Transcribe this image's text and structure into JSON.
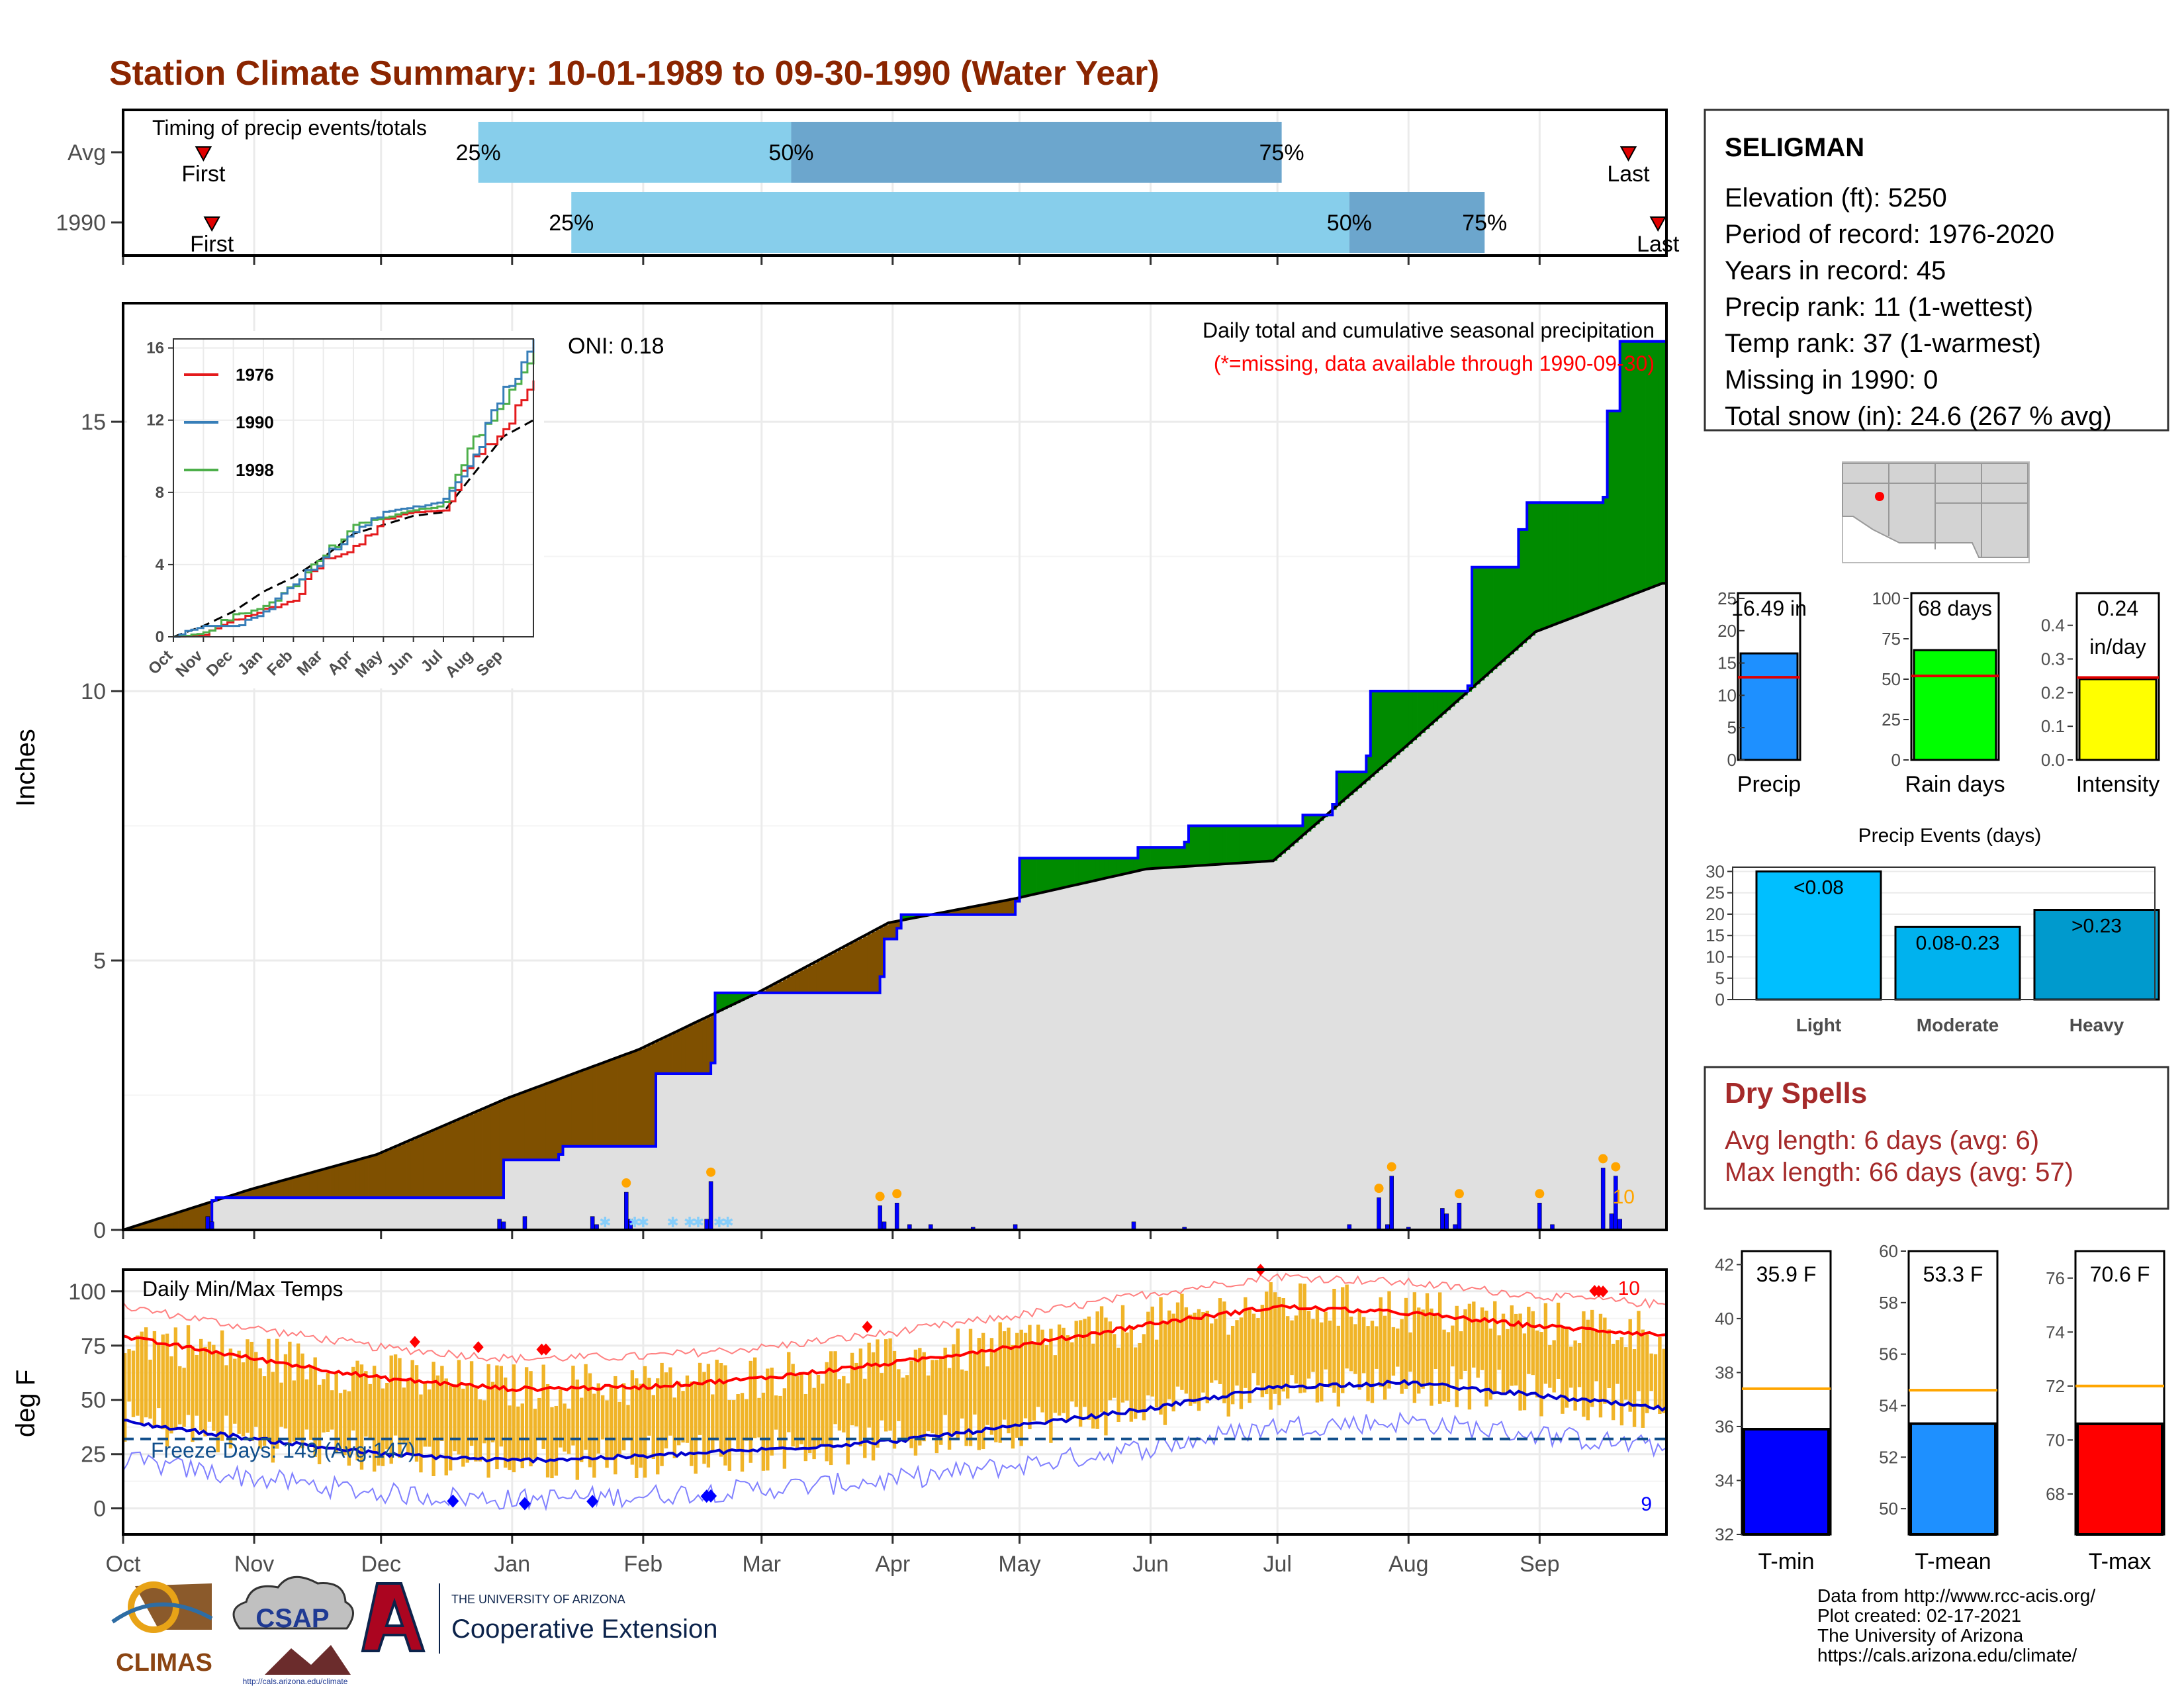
{
  "title": "Station Climate Summary: 10-01-1989 to 09-30-1990 (Water Year)",
  "colors": {
    "title": "#8B2500",
    "light_blue": "#87CEEB",
    "mid_blue": "#6CA6CD",
    "brown": "#7F5000",
    "green": "#008B00",
    "gray_fill": "#E0E0E0",
    "bar_blue": "#0000FF",
    "orange": "#F0B428",
    "red": "#FF0000",
    "dark_red": "#A52A2A",
    "precip_blue": "#1E90FF",
    "rain_green": "#00FF00",
    "intensity_yellow": "#FFFF00",
    "light_cyan": "#00BFFF",
    "mod_cyan": "#009ACD"
  },
  "timing": {
    "label": "Timing of precip events/totals",
    "rows": [
      {
        "name": "Avg",
        "first_label": "First",
        "last_label": "Last",
        "first_date": "1989-10-20",
        "last_date": "1990-09-22",
        "q25": "1989-12-24",
        "q50": "1990-03-08",
        "q75": "1990-07-02",
        "q25_label": "25%",
        "q50_label": "50%",
        "q75_label": "75%"
      },
      {
        "name": "1990",
        "first_label": "First",
        "last_label": "Last",
        "first_date": "1989-10-22",
        "last_date": "1990-09-29",
        "q25": "1990-01-15",
        "q50": "1990-07-18",
        "q75": "1990-08-19",
        "q25_label": "25%",
        "q50_label": "50%",
        "q75_label": "75%"
      }
    ]
  },
  "precip_panel": {
    "ylabel": "Inches",
    "oni_label": "ONI: 0.18",
    "caption": "Daily total and cumulative seasonal precipitation",
    "missing_note": "(*=missing, data available through 1990-09-30)",
    "ymax_label": "10",
    "y_ticks": [
      "0",
      "5",
      "10",
      "15"
    ]
  },
  "inset": {
    "legend": [
      {
        "name": "1976",
        "color": "#E41A1C"
      },
      {
        "name": "1990",
        "color": "#377EB8"
      },
      {
        "name": "1998",
        "color": "#4DAF4A"
      }
    ],
    "y_ticks": [
      "0",
      "4",
      "8",
      "12",
      "16"
    ],
    "x_ticks": [
      "Oct",
      "Nov",
      "Dec",
      "Jan",
      "Feb",
      "Mar",
      "Apr",
      "May",
      "Jun",
      "Jul",
      "Aug",
      "Sep"
    ]
  },
  "temp_panel": {
    "ylabel": "deg F",
    "label": "Daily Min/Max Temps",
    "freeze_label": "Freeze Days: 149 (Avg:147)",
    "record_high_count": "10",
    "record_low_count": "9",
    "y_ticks": [
      "0",
      "25",
      "50",
      "75",
      "100"
    ]
  },
  "month_labels": [
    "Oct",
    "Nov",
    "Dec",
    "Jan",
    "Feb",
    "Mar",
    "Apr",
    "May",
    "Jun",
    "Jul",
    "Aug",
    "Sep"
  ],
  "station": {
    "name": "SELIGMAN",
    "lines": [
      "Elevation (ft): 5250",
      "Period of record: 1976-2020",
      "Years in record: 45",
      "Precip rank: 11 (1-wettest)",
      "Temp rank: 37 (1-warmest)",
      "Missing in 1990: 0",
      "Total snow (in): 24.6 (267 % avg)"
    ]
  },
  "summary_bars": [
    {
      "name": "Precip",
      "value": 16.49,
      "avg": 12.8,
      "label": "16.49 in",
      "ymax": 25,
      "ticks": [
        "0",
        "5",
        "10",
        "15",
        "20",
        "25"
      ],
      "color": "#1E90FF"
    },
    {
      "name": "Rain days",
      "value": 68,
      "avg": 52,
      "label": "68 days",
      "ymax": 100,
      "ticks": [
        "0",
        "25",
        "50",
        "75",
        "100"
      ],
      "color": "#00FF00"
    },
    {
      "name": "Intensity",
      "value": 0.24,
      "avg": 0.245,
      "label": "0.24",
      "label2": "in/day",
      "ymax": 0.48,
      "ticks": [
        "0.0",
        "0.1",
        "0.2",
        "0.3",
        "0.4"
      ],
      "color": "#FFFF00"
    }
  ],
  "precip_events": {
    "title": "Precip Events (days)",
    "ticks": [
      "0",
      "5",
      "10",
      "15",
      "20",
      "25",
      "30"
    ],
    "bars": [
      {
        "name": "Light",
        "label": "<0.08",
        "value": 30,
        "color": "#00BFFF"
      },
      {
        "name": "Moderate",
        "label": "0.08-0.23",
        "value": 17,
        "color": "#00B2EE"
      },
      {
        "name": "Heavy",
        "label": ">0.23",
        "value": 21,
        "color": "#009ACD"
      }
    ]
  },
  "dry_spells": {
    "title": "Dry Spells",
    "avg_line": "Avg length: 6 days (avg: 6)",
    "max_line": "Max length: 66 days (avg: 57)"
  },
  "temp_bars": [
    {
      "name": "T-min",
      "label": "35.9 F",
      "value": 35.9,
      "avg": 37.4,
      "ymin": 32,
      "ymax": 42.5,
      "ticks": [
        "32",
        "34",
        "36",
        "38",
        "40",
        "42"
      ],
      "color": "#0000FF"
    },
    {
      "name": "T-mean",
      "label": "53.3 F",
      "value": 53.3,
      "avg": 54.6,
      "ymin": 49,
      "ymax": 60,
      "ticks": [
        "50",
        "52",
        "54",
        "56",
        "58",
        "60"
      ],
      "color": "#1E90FF"
    },
    {
      "name": "T-max",
      "label": "70.6 F",
      "value": 70.6,
      "avg": 72.0,
      "ymin": 66.5,
      "ymax": 77,
      "ticks": [
        "68",
        "70",
        "72",
        "74",
        "76"
      ],
      "color": "#FF0000"
    }
  ],
  "credits": [
    "Data from http://www.rcc-acis.org/",
    "Plot created: 02-17-2021",
    "The University of Arizona",
    "https://cals.arizona.edu/climate/"
  ],
  "logos": {
    "climas": "CLIMAS",
    "csap": "CSAP",
    "csap_url": "http://cals.arizona.edu/climate",
    "ua_small": "THE UNIVERSITY OF ARIZONA",
    "ua_large": "Cooperative Extension"
  },
  "chart_data": {
    "type": "area",
    "x_axis": "date",
    "cumulative_precip_1990": {
      "x": [
        "1989-10-01",
        "1989-10-22",
        "1989-10-23",
        "1989-12-29",
        "1989-12-30",
        "1990-01-12",
        "1990-01-13",
        "1990-02-03",
        "1990-02-04",
        "1990-02-17",
        "1990-02-18",
        "1990-03-29",
        "1990-03-30",
        "1990-04-02",
        "1990-04-03",
        "1990-04-30",
        "1990-05-01",
        "1990-05-28",
        "1990-05-29",
        "1990-06-09",
        "1990-06-10",
        "1990-07-02",
        "1990-07-07",
        "1990-07-14",
        "1990-07-15",
        "1990-07-22",
        "1990-07-23",
        "1990-08-15",
        "1990-08-16",
        "1990-08-27",
        "1990-08-29",
        "1990-09-16",
        "1990-09-17",
        "1990-09-20",
        "1990-09-30"
      ],
      "y": [
        0,
        0.55,
        0.6,
        0.6,
        1.3,
        1.4,
        1.55,
        1.55,
        2.9,
        3.1,
        4.4,
        4.7,
        5.4,
        5.6,
        5.85,
        6.1,
        6.9,
        6.9,
        7.1,
        7.2,
        7.5,
        7.5,
        7.7,
        7.9,
        8.5,
        8.8,
        10.0,
        10.1,
        12.3,
        13.0,
        13.5,
        13.6,
        15.2,
        16.49,
        16.49
      ]
    },
    "cumulative_precip_avg": {
      "x": [
        "1989-10-01",
        "1989-10-31",
        "1989-11-30",
        "1989-12-31",
        "1990-01-31",
        "1990-02-28",
        "1990-03-31",
        "1990-04-30",
        "1990-05-31",
        "1990-06-30",
        "1990-07-31",
        "1990-08-31",
        "1990-09-30"
      ],
      "y": [
        0,
        0.75,
        1.4,
        2.45,
        3.35,
        4.4,
        5.7,
        6.15,
        6.7,
        6.85,
        8.95,
        11.1,
        12.0
      ]
    },
    "daily_precip_marks": {
      "x": [
        "1989-10-21",
        "1989-10-22",
        "1989-12-29",
        "1989-12-30",
        "1990-01-04",
        "1990-01-20",
        "1990-01-21",
        "1990-01-28",
        "1990-01-29",
        "1990-02-16",
        "1990-02-17",
        "1990-03-29",
        "1990-03-30",
        "1990-04-02",
        "1990-04-05",
        "1990-04-10",
        "1990-04-20",
        "1990-04-30",
        "1990-05-28",
        "1990-06-09",
        "1990-07-18",
        "1990-07-25",
        "1990-07-27",
        "1990-07-28",
        "1990-08-01",
        "1990-08-09",
        "1990-08-10",
        "1990-08-12",
        "1990-08-13",
        "1990-09-01",
        "1990-09-04",
        "1990-09-16",
        "1990-09-18",
        "1990-09-19",
        "1990-09-20"
      ],
      "y": [
        0.25,
        0.15,
        0.2,
        0.15,
        0.25,
        0.25,
        0.1,
        0.7,
        0.2,
        0.2,
        0.9,
        0.45,
        0.15,
        0.5,
        0.1,
        0.1,
        0.05,
        0.1,
        0.15,
        0.05,
        0.1,
        0.6,
        0.1,
        1.0,
        0.05,
        0.4,
        0.3,
        0.1,
        0.5,
        0.5,
        0.1,
        1.15,
        0.3,
        1.0,
        0.2
      ]
    },
    "inset_cumulative": {
      "months": [
        "Oct",
        "Nov",
        "Dec",
        "Jan",
        "Feb",
        "Mar",
        "Apr",
        "May",
        "Jun",
        "Jul",
        "Aug",
        "Sep",
        "end"
      ],
      "avg": [
        0,
        0.6,
        1.4,
        2.5,
        3.3,
        4.4,
        5.7,
        6.2,
        6.7,
        6.9,
        9.0,
        11.1,
        12.0
      ],
      "1976": [
        0,
        0.1,
        0.9,
        1.5,
        2.0,
        4.3,
        4.8,
        6.5,
        6.9,
        7.0,
        10.0,
        11.5,
        14.2
      ],
      "1990": [
        0,
        0.6,
        0.6,
        1.4,
        2.9,
        4.4,
        5.8,
        6.9,
        7.2,
        7.5,
        10.0,
        13.5,
        16.49
      ],
      "1998": [
        0,
        0.2,
        1.2,
        1.6,
        2.8,
        4.5,
        6.2,
        6.6,
        7.0,
        7.3,
        11.0,
        12.9,
        16.0
      ]
    },
    "temperature": {
      "normal_high": {
        "x": [
          "1989-10-01",
          "1989-11-01",
          "1989-12-01",
          "1990-01-01",
          "1990-02-01",
          "1990-03-01",
          "1990-04-01",
          "1990-05-01",
          "1990-06-01",
          "1990-07-01",
          "1990-08-01",
          "1990-09-01",
          "1990-09-30"
        ],
        "y": [
          79,
          69,
          60,
          55,
          56,
          60,
          67,
          75,
          85,
          93,
          90,
          84,
          80
        ]
      },
      "normal_low": {
        "x": [
          "1989-10-01",
          "1989-11-01",
          "1989-12-01",
          "1990-01-01",
          "1990-02-01",
          "1990-03-01",
          "1990-04-01",
          "1990-05-01",
          "1990-06-01",
          "1990-07-01",
          "1990-08-01",
          "1990-09-01",
          "1990-09-30"
        ],
        "y": [
          40,
          32,
          25,
          22,
          24,
          27,
          31,
          38,
          46,
          56,
          58,
          52,
          46
        ]
      },
      "freeze_line": 32,
      "ylim": [
        -12,
        110
      ]
    }
  }
}
